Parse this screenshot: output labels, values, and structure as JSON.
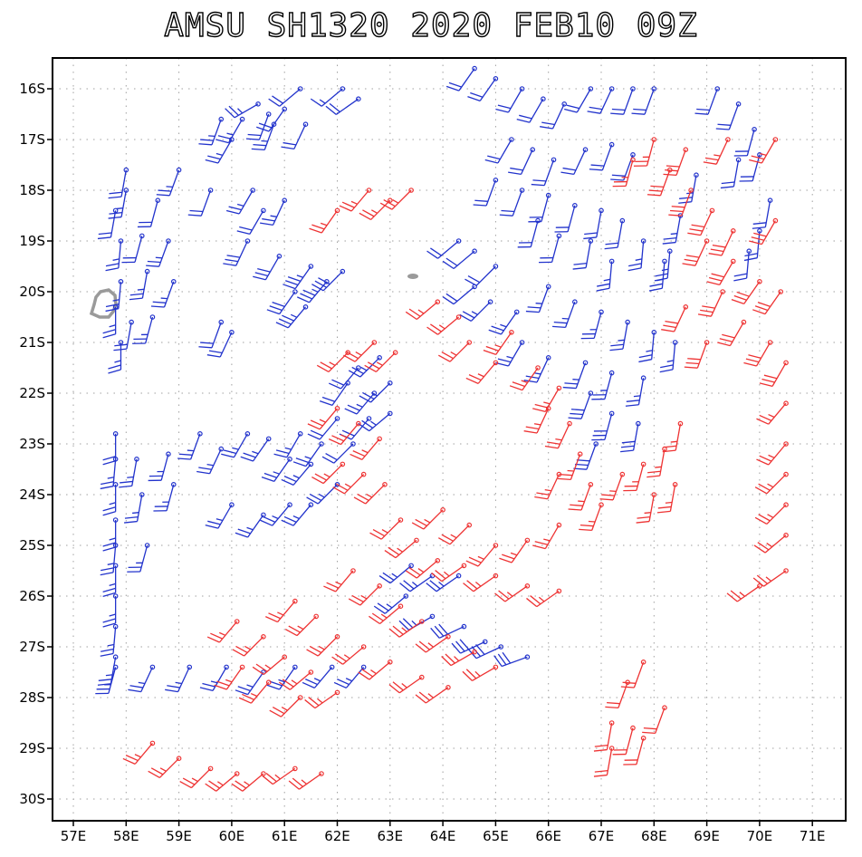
{
  "title": "AMSU  SH1320  2020  FEB10  09Z",
  "colors": {
    "frame": "#000000",
    "grid": "#a0a0a0",
    "blue": "#2233cc",
    "red": "#ee3333",
    "land": "#9a9a9a"
  },
  "axes": {
    "x_labels": [
      "57E",
      "58E",
      "59E",
      "60E",
      "61E",
      "62E",
      "63E",
      "64E",
      "65E",
      "66E",
      "67E",
      "68E",
      "69E",
      "70E",
      "71E"
    ],
    "y_labels": [
      "16S",
      "17S",
      "18S",
      "19S",
      "20S",
      "21S",
      "22S",
      "23S",
      "24S",
      "25S",
      "26S",
      "27S",
      "28S",
      "29S",
      "30S"
    ],
    "lon_range": [
      56.6,
      71.6
    ],
    "lat_range": [
      -15.55,
      -30.4
    ]
  },
  "wind_barbs": {
    "blue": [
      [
        60.5,
        -16.3,
        240,
        25
      ],
      [
        61.3,
        -16.0,
        230,
        20
      ],
      [
        62.1,
        -16.0,
        230,
        15
      ],
      [
        62.4,
        -16.2,
        235,
        20
      ],
      [
        59.8,
        -16.6,
        200,
        25
      ],
      [
        60.2,
        -16.6,
        210,
        25
      ],
      [
        60.7,
        -16.5,
        200,
        20
      ],
      [
        61.0,
        -16.4,
        215,
        20
      ],
      [
        60.0,
        -17.0,
        210,
        25
      ],
      [
        60.8,
        -16.7,
        200,
        25
      ],
      [
        61.4,
        -16.7,
        205,
        20
      ],
      [
        58.0,
        -17.6,
        190,
        20
      ],
      [
        58.0,
        -18.0,
        190,
        25
      ],
      [
        58.6,
        -18.2,
        195,
        20
      ],
      [
        59.0,
        -17.6,
        200,
        25
      ],
      [
        59.6,
        -18.0,
        200,
        20
      ],
      [
        60.4,
        -18.0,
        210,
        25
      ],
      [
        60.6,
        -18.4,
        210,
        20
      ],
      [
        61.0,
        -18.2,
        205,
        25
      ],
      [
        57.8,
        -18.4,
        190,
        20
      ],
      [
        57.9,
        -19.0,
        185,
        25
      ],
      [
        58.3,
        -18.9,
        195,
        20
      ],
      [
        58.8,
        -19.0,
        200,
        25
      ],
      [
        60.3,
        -19.0,
        205,
        30
      ],
      [
        60.9,
        -19.3,
        210,
        30
      ],
      [
        61.5,
        -19.5,
        215,
        35
      ],
      [
        61.8,
        -19.8,
        220,
        35
      ],
      [
        62.1,
        -19.6,
        225,
        30
      ],
      [
        61.2,
        -20.0,
        215,
        30
      ],
      [
        61.4,
        -20.3,
        220,
        35
      ],
      [
        57.9,
        -19.8,
        185,
        25
      ],
      [
        58.4,
        -19.6,
        190,
        25
      ],
      [
        58.9,
        -19.8,
        200,
        25
      ],
      [
        57.8,
        -20.3,
        180,
        25
      ],
      [
        58.1,
        -20.6,
        190,
        20
      ],
      [
        58.5,
        -20.5,
        195,
        25
      ],
      [
        57.9,
        -21.0,
        180,
        25
      ],
      [
        59.8,
        -20.6,
        200,
        20
      ],
      [
        60.0,
        -20.8,
        205,
        20
      ],
      [
        62.4,
        -21.5,
        220,
        20
      ],
      [
        62.8,
        -21.3,
        225,
        25
      ],
      [
        62.2,
        -21.8,
        215,
        20
      ],
      [
        62.7,
        -22.0,
        220,
        25
      ],
      [
        63.0,
        -21.8,
        225,
        25
      ],
      [
        63.0,
        -22.4,
        230,
        25
      ],
      [
        62.6,
        -22.5,
        220,
        20
      ],
      [
        57.8,
        -22.8,
        180,
        20
      ],
      [
        57.8,
        -23.3,
        185,
        25
      ],
      [
        58.2,
        -23.3,
        190,
        25
      ],
      [
        58.8,
        -23.2,
        195,
        25
      ],
      [
        57.8,
        -23.8,
        180,
        25
      ],
      [
        58.3,
        -24.0,
        190,
        25
      ],
      [
        58.9,
        -23.8,
        195,
        25
      ],
      [
        59.4,
        -22.8,
        200,
        25
      ],
      [
        59.8,
        -23.1,
        205,
        25
      ],
      [
        60.3,
        -22.8,
        210,
        25
      ],
      [
        60.7,
        -22.9,
        215,
        25
      ],
      [
        61.1,
        -23.3,
        215,
        25
      ],
      [
        61.5,
        -23.4,
        220,
        25
      ],
      [
        62.0,
        -23.8,
        225,
        25
      ],
      [
        61.3,
        -22.8,
        210,
        25
      ],
      [
        61.7,
        -23.0,
        215,
        25
      ],
      [
        62.0,
        -22.5,
        220,
        20
      ],
      [
        62.3,
        -23.0,
        225,
        20
      ],
      [
        60.0,
        -24.2,
        210,
        25
      ],
      [
        60.6,
        -24.4,
        215,
        25
      ],
      [
        61.1,
        -24.2,
        220,
        25
      ],
      [
        61.5,
        -24.2,
        220,
        25
      ],
      [
        57.8,
        -24.5,
        180,
        25
      ],
      [
        57.8,
        -25.0,
        185,
        25
      ],
      [
        58.4,
        -25.0,
        195,
        25
      ],
      [
        57.8,
        -25.4,
        180,
        25
      ],
      [
        57.8,
        -26.0,
        180,
        25
      ],
      [
        57.8,
        -26.6,
        185,
        25
      ],
      [
        57.8,
        -27.2,
        190,
        25
      ],
      [
        57.8,
        -27.4,
        195,
        25
      ],
      [
        58.5,
        -27.4,
        205,
        25
      ],
      [
        59.2,
        -27.4,
        205,
        25
      ],
      [
        59.9,
        -27.4,
        210,
        25
      ],
      [
        60.6,
        -27.5,
        215,
        25
      ],
      [
        61.2,
        -27.4,
        215,
        25
      ],
      [
        61.9,
        -27.4,
        220,
        25
      ],
      [
        62.5,
        -27.4,
        220,
        25
      ],
      [
        63.4,
        -25.4,
        230,
        25
      ],
      [
        63.8,
        -25.6,
        235,
        25
      ],
      [
        64.3,
        -25.6,
        235,
        25
      ],
      [
        63.3,
        -26.0,
        230,
        25
      ],
      [
        63.8,
        -26.4,
        240,
        25
      ],
      [
        64.4,
        -26.6,
        245,
        30
      ],
      [
        64.8,
        -26.9,
        245,
        30
      ],
      [
        65.1,
        -27.0,
        245,
        30
      ],
      [
        65.6,
        -27.2,
        250,
        30
      ],
      [
        64.6,
        -19.9,
        230,
        20
      ],
      [
        64.9,
        -20.2,
        225,
        25
      ],
      [
        65.4,
        -20.4,
        215,
        25
      ],
      [
        64.3,
        -19.0,
        230,
        20
      ],
      [
        64.6,
        -19.2,
        230,
        20
      ],
      [
        65.0,
        -19.5,
        225,
        20
      ],
      [
        65.5,
        -16.0,
        210,
        20
      ],
      [
        65.9,
        -16.2,
        210,
        20
      ],
      [
        66.3,
        -16.3,
        205,
        20
      ],
      [
        64.6,
        -15.6,
        215,
        20
      ],
      [
        65.0,
        -15.8,
        215,
        20
      ],
      [
        66.8,
        -16.0,
        210,
        20
      ],
      [
        67.2,
        -16.0,
        205,
        20
      ],
      [
        67.6,
        -16.0,
        200,
        20
      ],
      [
        68.0,
        -16.0,
        200,
        20
      ],
      [
        65.3,
        -17.0,
        210,
        20
      ],
      [
        65.7,
        -17.2,
        205,
        20
      ],
      [
        66.1,
        -17.4,
        200,
        20
      ],
      [
        66.7,
        -17.2,
        205,
        20
      ],
      [
        67.2,
        -17.1,
        200,
        20
      ],
      [
        67.6,
        -17.3,
        200,
        20
      ],
      [
        65.0,
        -17.8,
        200,
        20
      ],
      [
        65.5,
        -18.0,
        200,
        20
      ],
      [
        66.0,
        -18.1,
        195,
        20
      ],
      [
        66.5,
        -18.3,
        195,
        20
      ],
      [
        67.0,
        -18.4,
        190,
        20
      ],
      [
        67.4,
        -18.6,
        190,
        20
      ],
      [
        65.8,
        -18.6,
        195,
        20
      ],
      [
        66.2,
        -18.9,
        195,
        20
      ],
      [
        66.8,
        -19.0,
        190,
        20
      ],
      [
        67.2,
        -19.4,
        185,
        25
      ],
      [
        67.8,
        -19.0,
        185,
        25
      ],
      [
        68.3,
        -19.2,
        185,
        25
      ],
      [
        66.0,
        -19.9,
        200,
        25
      ],
      [
        66.5,
        -20.2,
        200,
        25
      ],
      [
        67.0,
        -20.4,
        195,
        25
      ],
      [
        67.5,
        -20.6,
        190,
        25
      ],
      [
        68.0,
        -20.8,
        185,
        25
      ],
      [
        68.4,
        -21.0,
        185,
        25
      ],
      [
        65.5,
        -21.0,
        210,
        25
      ],
      [
        66.0,
        -21.3,
        205,
        25
      ],
      [
        66.7,
        -21.4,
        200,
        25
      ],
      [
        67.2,
        -21.6,
        195,
        25
      ],
      [
        67.8,
        -21.7,
        190,
        25
      ],
      [
        66.8,
        -22.0,
        200,
        30
      ],
      [
        67.2,
        -22.4,
        195,
        30
      ],
      [
        67.7,
        -22.6,
        190,
        30
      ],
      [
        66.9,
        -23.0,
        200,
        30
      ],
      [
        69.2,
        -16.0,
        200,
        20
      ],
      [
        69.6,
        -16.3,
        200,
        20
      ],
      [
        69.9,
        -16.8,
        195,
        20
      ],
      [
        70.0,
        -17.3,
        195,
        20
      ],
      [
        69.6,
        -17.4,
        190,
        20
      ],
      [
        70.2,
        -18.2,
        190,
        20
      ],
      [
        70.0,
        -18.8,
        185,
        20
      ],
      [
        69.8,
        -19.2,
        185,
        20
      ],
      [
        68.8,
        -17.7,
        190,
        25
      ],
      [
        68.5,
        -18.5,
        190,
        25
      ],
      [
        68.2,
        -19.4,
        185,
        25
      ]
    ],
    "red": [
      [
        62.6,
        -18.0,
        220,
        25
      ],
      [
        63.0,
        -18.2,
        225,
        25
      ],
      [
        63.4,
        -18.0,
        225,
        25
      ],
      [
        62.0,
        -18.4,
        215,
        25
      ],
      [
        63.9,
        -20.2,
        230,
        25
      ],
      [
        64.3,
        -20.5,
        230,
        25
      ],
      [
        64.5,
        -21.0,
        225,
        25
      ],
      [
        65.0,
        -21.4,
        220,
        25
      ],
      [
        65.3,
        -20.8,
        215,
        25
      ],
      [
        65.8,
        -21.5,
        215,
        25
      ],
      [
        66.2,
        -21.9,
        210,
        25
      ],
      [
        66.0,
        -22.3,
        205,
        25
      ],
      [
        66.4,
        -22.6,
        205,
        25
      ],
      [
        66.6,
        -23.2,
        200,
        25
      ],
      [
        66.2,
        -23.6,
        205,
        25
      ],
      [
        66.8,
        -23.8,
        200,
        25
      ],
      [
        67.4,
        -23.6,
        200,
        25
      ],
      [
        67.8,
        -23.4,
        195,
        25
      ],
      [
        68.2,
        -23.1,
        190,
        25
      ],
      [
        68.5,
        -22.6,
        190,
        25
      ],
      [
        69.0,
        -21.0,
        200,
        30
      ],
      [
        68.6,
        -20.3,
        205,
        30
      ],
      [
        69.3,
        -20.0,
        205,
        30
      ],
      [
        69.7,
        -20.6,
        210,
        30
      ],
      [
        70.2,
        -21.0,
        210,
        30
      ],
      [
        70.5,
        -21.4,
        210,
        30
      ],
      [
        69.0,
        -19.0,
        205,
        30
      ],
      [
        69.5,
        -19.4,
        210,
        30
      ],
      [
        70.0,
        -19.8,
        215,
        30
      ],
      [
        70.4,
        -20.0,
        215,
        30
      ],
      [
        68.7,
        -18.0,
        200,
        30
      ],
      [
        69.1,
        -18.4,
        205,
        30
      ],
      [
        69.5,
        -18.8,
        205,
        30
      ],
      [
        70.3,
        -18.6,
        210,
        30
      ],
      [
        68.6,
        -17.2,
        200,
        30
      ],
      [
        68.3,
        -17.6,
        200,
        30
      ],
      [
        68.0,
        -17.0,
        195,
        25
      ],
      [
        67.6,
        -17.4,
        195,
        25
      ],
      [
        69.4,
        -17.0,
        205,
        25
      ],
      [
        70.3,
        -17.0,
        210,
        25
      ],
      [
        70.5,
        -22.2,
        220,
        25
      ],
      [
        70.5,
        -23.0,
        220,
        25
      ],
      [
        70.5,
        -23.6,
        225,
        25
      ],
      [
        70.5,
        -24.2,
        225,
        25
      ],
      [
        70.5,
        -24.8,
        230,
        25
      ],
      [
        70.5,
        -25.5,
        235,
        25
      ],
      [
        70.0,
        -25.8,
        235,
        25
      ],
      [
        68.0,
        -24.0,
        190,
        25
      ],
      [
        68.4,
        -23.8,
        190,
        25
      ],
      [
        67.0,
        -24.2,
        200,
        25
      ],
      [
        66.2,
        -24.6,
        210,
        25
      ],
      [
        65.6,
        -24.9,
        215,
        25
      ],
      [
        65.0,
        -25.0,
        220,
        25
      ],
      [
        64.5,
        -24.6,
        225,
        25
      ],
      [
        64.0,
        -24.3,
        225,
        25
      ],
      [
        63.2,
        -24.5,
        225,
        25
      ],
      [
        63.5,
        -24.9,
        230,
        25
      ],
      [
        63.9,
        -25.3,
        230,
        25
      ],
      [
        64.4,
        -25.4,
        235,
        25
      ],
      [
        65.0,
        -25.6,
        235,
        25
      ],
      [
        65.6,
        -25.8,
        235,
        25
      ],
      [
        66.2,
        -25.9,
        235,
        25
      ],
      [
        62.3,
        -25.5,
        220,
        25
      ],
      [
        62.8,
        -25.8,
        225,
        25
      ],
      [
        63.2,
        -26.2,
        230,
        25
      ],
      [
        63.6,
        -26.5,
        235,
        25
      ],
      [
        64.1,
        -26.8,
        235,
        25
      ],
      [
        64.6,
        -27.1,
        240,
        25
      ],
      [
        65.0,
        -27.4,
        240,
        25
      ],
      [
        61.2,
        -26.1,
        220,
        25
      ],
      [
        61.6,
        -26.4,
        225,
        25
      ],
      [
        62.0,
        -26.8,
        225,
        25
      ],
      [
        62.5,
        -27.0,
        230,
        25
      ],
      [
        63.0,
        -27.3,
        230,
        25
      ],
      [
        63.6,
        -27.6,
        235,
        25
      ],
      [
        64.1,
        -27.8,
        235,
        25
      ],
      [
        60.1,
        -26.5,
        220,
        25
      ],
      [
        60.6,
        -26.8,
        225,
        25
      ],
      [
        61.0,
        -27.2,
        230,
        25
      ],
      [
        61.5,
        -27.5,
        230,
        25
      ],
      [
        62.0,
        -27.9,
        235,
        25
      ],
      [
        60.2,
        -27.4,
        215,
        25
      ],
      [
        60.7,
        -27.7,
        220,
        25
      ],
      [
        61.3,
        -28.0,
        225,
        25
      ],
      [
        58.5,
        -28.9,
        220,
        25
      ],
      [
        59.0,
        -29.2,
        225,
        25
      ],
      [
        59.6,
        -29.4,
        225,
        25
      ],
      [
        60.1,
        -29.5,
        230,
        25
      ],
      [
        60.6,
        -29.5,
        230,
        25
      ],
      [
        61.2,
        -29.4,
        235,
        25
      ],
      [
        61.7,
        -29.5,
        235,
        25
      ],
      [
        67.8,
        -27.3,
        200,
        20
      ],
      [
        67.5,
        -27.7,
        200,
        20
      ],
      [
        67.6,
        -28.6,
        195,
        20
      ],
      [
        67.8,
        -28.8,
        195,
        20
      ],
      [
        68.2,
        -28.2,
        200,
        20
      ],
      [
        67.2,
        -28.5,
        190,
        20
      ],
      [
        67.2,
        -29.0,
        190,
        20
      ],
      [
        62.0,
        -22.3,
        220,
        25
      ],
      [
        62.4,
        -22.6,
        220,
        25
      ],
      [
        62.8,
        -22.9,
        220,
        25
      ],
      [
        62.1,
        -23.4,
        225,
        25
      ],
      [
        62.5,
        -23.6,
        225,
        25
      ],
      [
        62.9,
        -23.8,
        225,
        25
      ],
      [
        62.2,
        -21.2,
        225,
        25
      ],
      [
        62.7,
        -21.0,
        225,
        25
      ],
      [
        63.1,
        -21.2,
        225,
        25
      ]
    ]
  }
}
